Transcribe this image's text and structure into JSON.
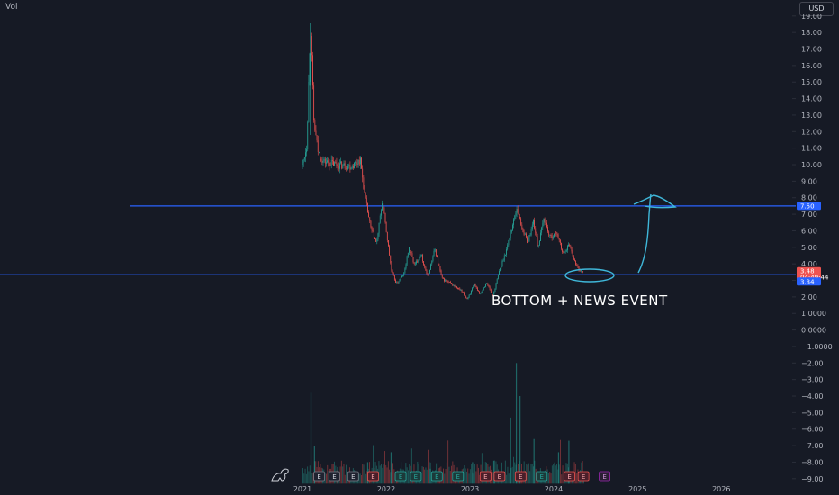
{
  "header": {
    "volume_label": "Vol",
    "currency": "USD"
  },
  "annotation": {
    "text": "BOTTOM + NEWS EVENT"
  },
  "price_labels": {
    "upper_line": "7.50",
    "last_price": "3.48",
    "countdown": "04:49:44",
    "lower_line": "3.34"
  },
  "earnings_marker_text": "E",
  "colors": {
    "background": "#161a25",
    "up": "#26a69a",
    "down": "#ef5350",
    "line": "#2962ff",
    "annotation_stroke": "#3fb7d9",
    "label_text": "#b2b5be",
    "grid": "#1f2330"
  },
  "chart_data": {
    "type": "candlestick",
    "x_ticks": [
      "2021",
      "2022",
      "2023",
      "2024",
      "2025",
      "2026"
    ],
    "y_ticks": [
      "19.00",
      "18.00",
      "17.00",
      "16.00",
      "15.00",
      "14.00",
      "13.00",
      "12.00",
      "11.00",
      "10.00",
      "9.00",
      "8.00",
      "7.00",
      "6.00",
      "5.00",
      "4.00",
      "3.00",
      "2.00",
      "1.0000",
      "0.0000",
      "−1.0000",
      "−2.00",
      "−3.00",
      "−4.00",
      "−5.00",
      "−6.00",
      "−7.00",
      "−8.00",
      "−9.00"
    ],
    "ylim": [
      -9.5,
      19.5
    ],
    "horizontal_lines": [
      7.5,
      3.34
    ],
    "last_price": 3.48,
    "price_path": [
      {
        "date": "2021-01-01",
        "close": 10.0
      },
      {
        "date": "2021-01-20",
        "close": 11.2
      },
      {
        "date": "2021-02-05",
        "close": 18.6
      },
      {
        "date": "2021-02-20",
        "close": 12.5
      },
      {
        "date": "2021-03-10",
        "close": 10.8
      },
      {
        "date": "2021-04-01",
        "close": 10.2
      },
      {
        "date": "2021-06-01",
        "close": 10.0
      },
      {
        "date": "2021-08-01",
        "close": 9.9
      },
      {
        "date": "2021-09-10",
        "close": 10.3
      },
      {
        "date": "2021-10-01",
        "close": 8.0
      },
      {
        "date": "2021-10-25",
        "close": 6.2
      },
      {
        "date": "2021-11-20",
        "close": 5.2
      },
      {
        "date": "2021-12-15",
        "close": 7.8
      },
      {
        "date": "2022-01-05",
        "close": 5.6
      },
      {
        "date": "2022-01-25",
        "close": 3.5
      },
      {
        "date": "2022-02-15",
        "close": 2.8
      },
      {
        "date": "2022-03-20",
        "close": 3.4
      },
      {
        "date": "2022-04-10",
        "close": 5.0
      },
      {
        "date": "2022-05-05",
        "close": 3.9
      },
      {
        "date": "2022-06-01",
        "close": 4.6
      },
      {
        "date": "2022-07-01",
        "close": 3.2
      },
      {
        "date": "2022-08-01",
        "close": 4.9
      },
      {
        "date": "2022-09-01",
        "close": 3.1
      },
      {
        "date": "2022-10-10",
        "close": 2.8
      },
      {
        "date": "2022-11-20",
        "close": 2.4
      },
      {
        "date": "2022-12-20",
        "close": 1.9
      },
      {
        "date": "2023-01-20",
        "close": 2.7
      },
      {
        "date": "2023-02-15",
        "close": 2.2
      },
      {
        "date": "2023-03-15",
        "close": 2.9
      },
      {
        "date": "2023-04-10",
        "close": 2.0
      },
      {
        "date": "2023-05-10",
        "close": 3.6
      },
      {
        "date": "2023-06-10",
        "close": 4.9
      },
      {
        "date": "2023-07-01",
        "close": 6.1
      },
      {
        "date": "2023-07-25",
        "close": 7.4
      },
      {
        "date": "2023-08-15",
        "close": 6.2
      },
      {
        "date": "2023-09-10",
        "close": 5.3
      },
      {
        "date": "2023-10-05",
        "close": 6.6
      },
      {
        "date": "2023-10-25",
        "close": 5.0
      },
      {
        "date": "2023-11-20",
        "close": 6.8
      },
      {
        "date": "2023-12-15",
        "close": 5.6
      },
      {
        "date": "2024-01-15",
        "close": 5.9
      },
      {
        "date": "2024-02-10",
        "close": 4.6
      },
      {
        "date": "2024-03-10",
        "close": 5.2
      },
      {
        "date": "2024-04-05",
        "close": 4.0
      },
      {
        "date": "2024-04-25",
        "close": 3.6
      },
      {
        "date": "2024-05-10",
        "close": 3.48
      }
    ],
    "volume_spikes": [
      {
        "date": "2021-02-05",
        "level": -3.8
      },
      {
        "date": "2021-02-20",
        "level": -7.0
      },
      {
        "date": "2021-06-01",
        "level": -8.3
      },
      {
        "date": "2021-10-10",
        "level": -8.0
      },
      {
        "date": "2022-01-20",
        "level": -7.4
      },
      {
        "date": "2022-07-10",
        "level": -8.4
      },
      {
        "date": "2023-01-10",
        "level": -8.0
      },
      {
        "date": "2023-04-15",
        "level": -7.9
      },
      {
        "date": "2023-06-25",
        "level": -5.3
      },
      {
        "date": "2023-07-20",
        "level": -2.0
      },
      {
        "date": "2023-08-05",
        "level": -4.0
      },
      {
        "date": "2023-10-05",
        "level": -6.6
      },
      {
        "date": "2024-01-20",
        "level": -7.4
      },
      {
        "date": "2024-03-05",
        "level": -6.7
      }
    ],
    "earnings_events": [
      {
        "date": "2021-03-15",
        "color": "neutral"
      },
      {
        "date": "2021-05-20",
        "color": "neutral"
      },
      {
        "date": "2021-08-10",
        "color": "neutral"
      },
      {
        "date": "2021-11-05",
        "color": "down"
      },
      {
        "date": "2022-03-05",
        "color": "up"
      },
      {
        "date": "2022-05-10",
        "color": "up"
      },
      {
        "date": "2022-08-10",
        "color": "up"
      },
      {
        "date": "2022-11-10",
        "color": "up"
      },
      {
        "date": "2023-03-10",
        "color": "down"
      },
      {
        "date": "2023-05-10",
        "color": "down"
      },
      {
        "date": "2023-08-10",
        "color": "down"
      },
      {
        "date": "2023-11-10",
        "color": "up"
      },
      {
        "date": "2024-03-10",
        "color": "down"
      },
      {
        "date": "2024-05-10",
        "color": "down"
      },
      {
        "date": "2024-08-10",
        "color": "future"
      }
    ]
  }
}
